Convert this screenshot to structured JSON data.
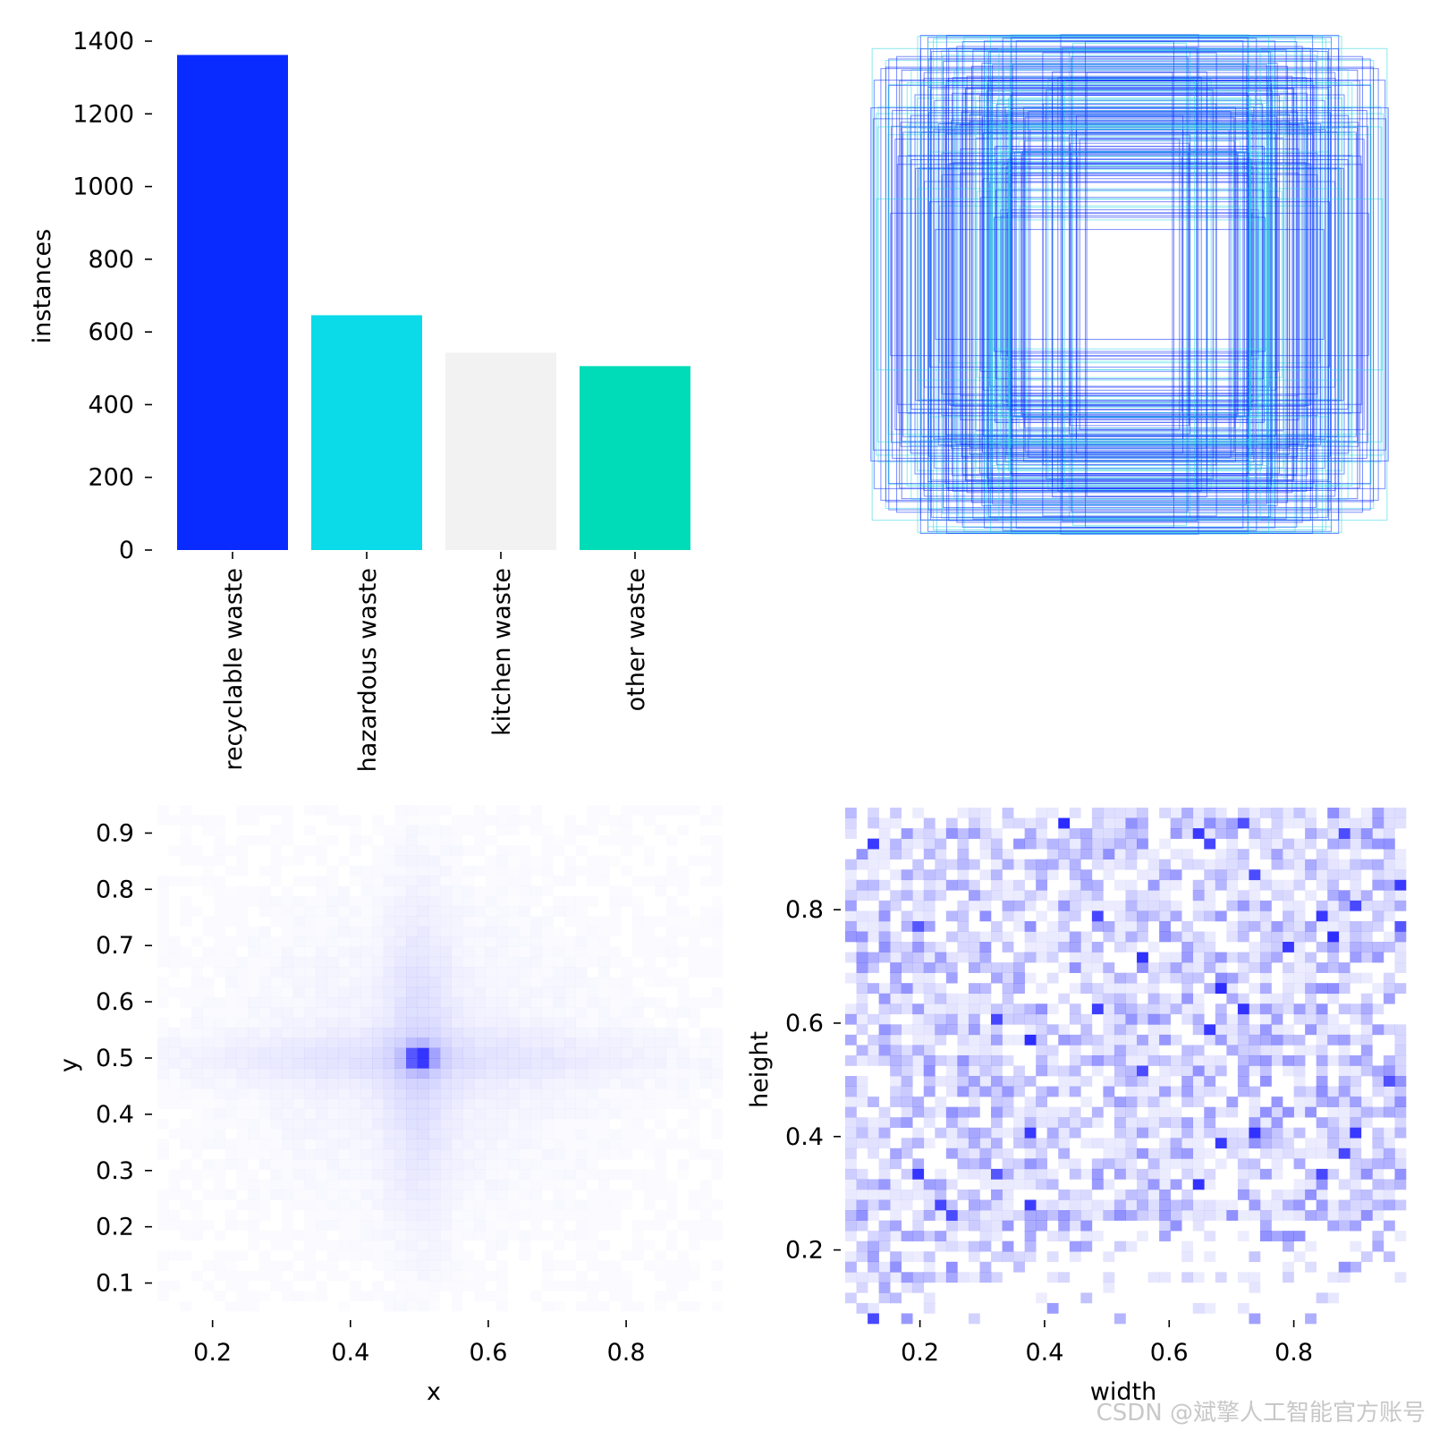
{
  "watermark": "CSDN @斌擎人工智能官方账号",
  "colors": {
    "recyclable": "#0a2bff",
    "hazardous": "#0bdbe8",
    "kitchen": "#f2f2f2",
    "other": "#00dcb8",
    "heat": "#1e1eff",
    "box_blue": "#0a2bff",
    "box_cyan": "#2fd6e0"
  },
  "chart_data": [
    {
      "type": "bar",
      "categories": [
        "recyclable waste",
        "hazardous waste",
        "kitchen waste",
        "other waste"
      ],
      "values": [
        1362,
        646,
        543,
        506
      ],
      "ylabel": "instances",
      "yticks": [
        0,
        200,
        400,
        600,
        800,
        1000,
        1200,
        1400
      ],
      "ylim": [
        0,
        1400
      ]
    },
    {
      "type": "box-overlay",
      "description_note": "",
      "n_boxes": 220
    },
    {
      "type": "heatmap",
      "xlabel": "x",
      "ylabel": "y",
      "xticks": [
        0.2,
        0.4,
        0.6,
        0.8
      ],
      "yticks": [
        0.1,
        0.2,
        0.3,
        0.4,
        0.5,
        0.6,
        0.7,
        0.8,
        0.9
      ],
      "xlim": [
        0.12,
        0.94
      ],
      "ylim": [
        0.05,
        0.95
      ],
      "peak": [
        0.5,
        0.5
      ]
    },
    {
      "type": "heatmap",
      "xlabel": "width",
      "ylabel": "height",
      "xticks": [
        0.2,
        0.4,
        0.6,
        0.8
      ],
      "yticks": [
        0.2,
        0.4,
        0.6,
        0.8
      ],
      "xlim": [
        0.08,
        0.98
      ],
      "ylim": [
        0.07,
        0.98
      ]
    }
  ]
}
